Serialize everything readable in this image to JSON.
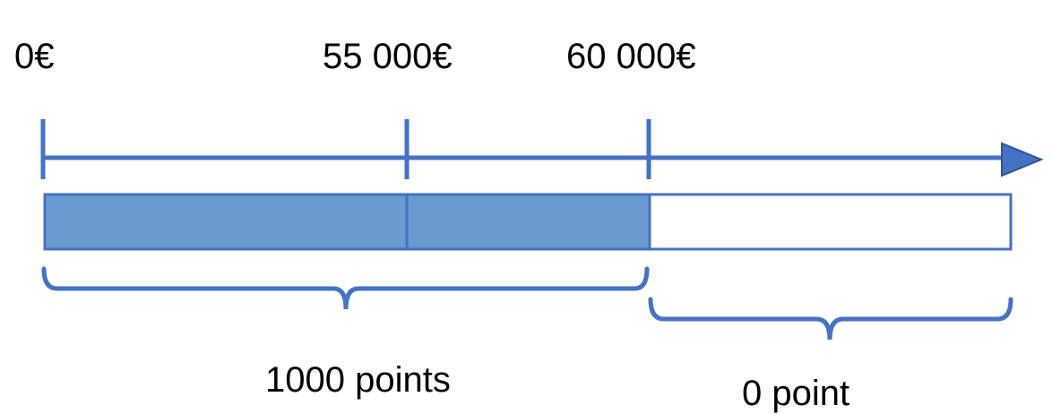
{
  "colors": {
    "line": "#4472C4",
    "fill": "#6A9BD0",
    "empty_fill": "#FFFFFF",
    "text": "#000000"
  },
  "ticks": [
    {
      "value": 0,
      "label": "0€"
    },
    {
      "value": 55000,
      "label": "55 000€"
    },
    {
      "value": 60000,
      "label": "60 000€"
    }
  ],
  "segments": [
    {
      "from": 0,
      "to": 55000,
      "state": "filled"
    },
    {
      "from": 55000,
      "to": 60000,
      "state": "filled"
    },
    {
      "from": 60000,
      "to": null,
      "state": "empty"
    }
  ],
  "braces": [
    {
      "from": 0,
      "to": 60000,
      "label": "1000 points"
    },
    {
      "from": 60000,
      "to": null,
      "label": "0 point"
    }
  ]
}
